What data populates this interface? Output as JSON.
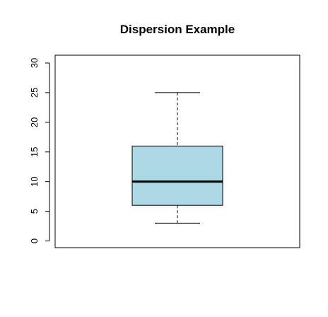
{
  "chart_data": {
    "type": "box",
    "title": "Dispersion Example",
    "xlabel": "",
    "ylabel": "",
    "ylim": [
      0,
      30
    ],
    "yticks": [
      0,
      5,
      10,
      15,
      20,
      25,
      30
    ],
    "ytick_labels": [
      "0",
      "5",
      "10",
      "15",
      "20",
      "25",
      "30"
    ],
    "grid": false,
    "box": {
      "whisker_low": 3,
      "q1": 6,
      "median": 10,
      "q3": 16,
      "whisker_high": 25
    },
    "colors": {
      "box_fill": "#add8e6",
      "box_stroke": "#000000",
      "median_stroke": "#000000",
      "axis": "#000000"
    }
  }
}
